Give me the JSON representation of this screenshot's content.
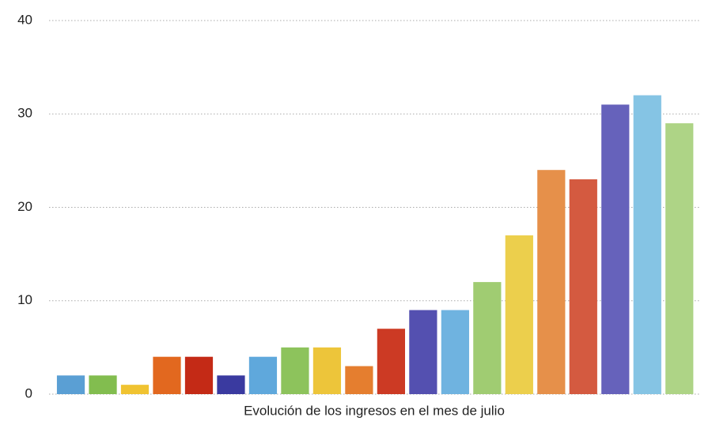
{
  "chart_data": {
    "type": "bar",
    "xlabel": "Evolución de los ingresos en el mes de julio",
    "categories": [
      null,
      null,
      null,
      null,
      null,
      null,
      null,
      null,
      null,
      null,
      null,
      null,
      null,
      null,
      null,
      null,
      null,
      null,
      null,
      null
    ],
    "values": [
      2,
      2,
      1,
      4,
      4,
      2,
      4,
      5,
      5,
      3,
      7,
      9,
      9,
      12,
      17,
      24,
      23,
      31,
      32,
      29
    ],
    "colors": [
      "#5a9fd4",
      "#82bd4f",
      "#f0c331",
      "#e2681f",
      "#c42a16",
      "#3a3aa0",
      "#5fa8dc",
      "#8dc35c",
      "#edc53a",
      "#e57e2f",
      "#cc3a24",
      "#5450b0",
      "#6fb3e0",
      "#a0cc72",
      "#eccf4c",
      "#e6904a",
      "#d45a40",
      "#6662bb",
      "#85c4e4",
      "#aed486"
    ],
    "ylim": [
      0,
      40
    ],
    "yticks": [
      0,
      10,
      20,
      30,
      40
    ],
    "grid": true
  }
}
